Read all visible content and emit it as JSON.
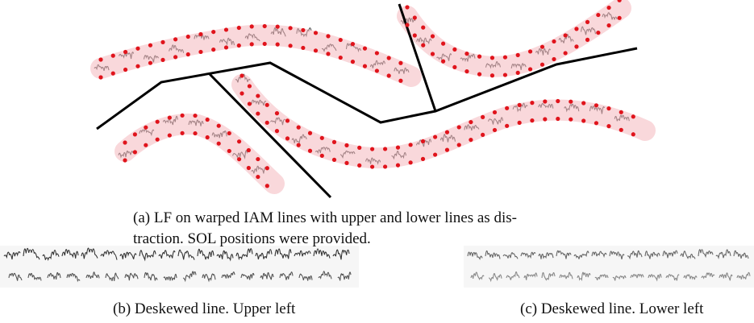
{
  "figure": {
    "panels": [
      {
        "caption_lines": [
          "(a) LF on warped IAM lines with upper and lower lines as dis-",
          "traction. SOL positions were provided."
        ]
      },
      {
        "caption_lines": [
          "(b) Deskewed line. Upper left"
        ]
      },
      {
        "caption_lines": [
          "(c) Deskewed line. Lower left"
        ]
      }
    ]
  }
}
